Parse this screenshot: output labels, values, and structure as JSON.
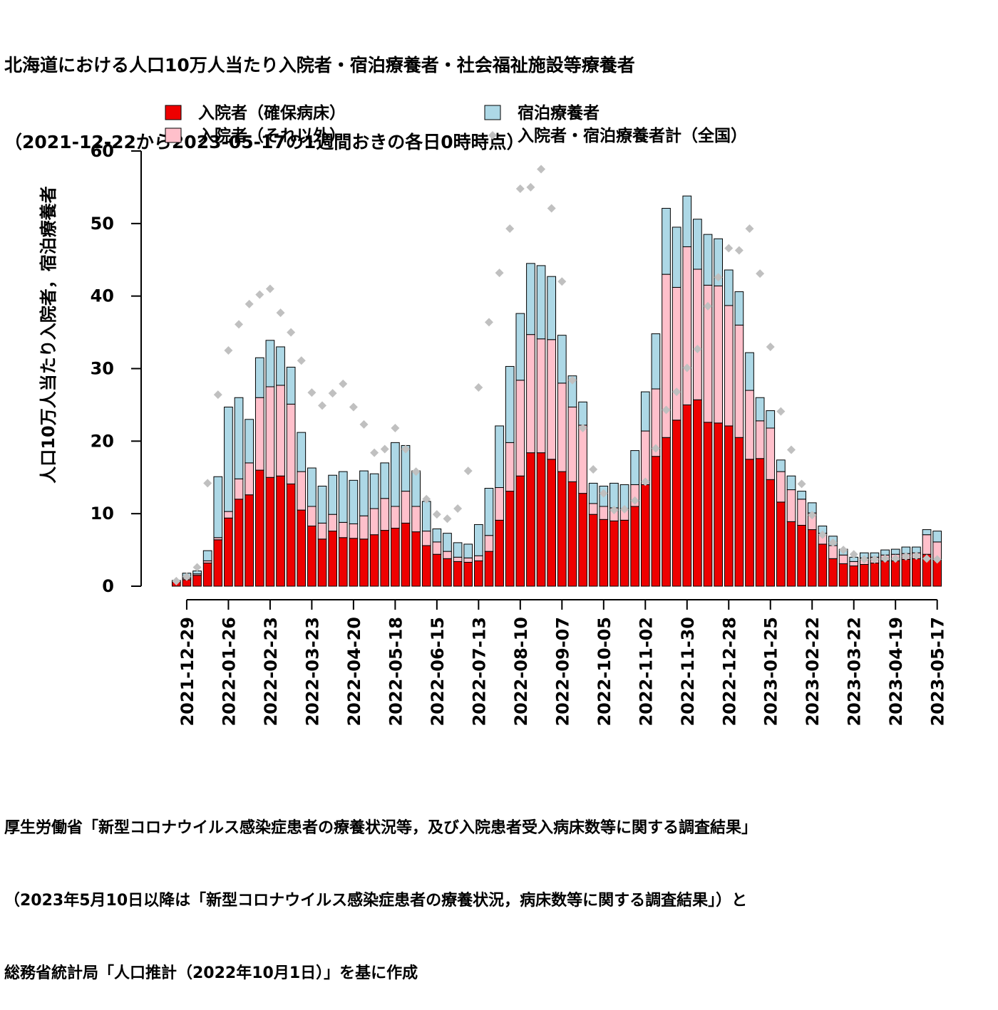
{
  "title_line1": "北海道における人口10万人当たり入院者・宿泊療養者・社会福祉施設等療養者",
  "title_line2": "（2021-12-22から2023-05-17の1週間おきの各日0時時点）",
  "source_lines": [
    "厚生労働省「新型コロナウイルス感染症患者の療養状況等，及び入院患者受入病床数等に関する調査結果」",
    "（2023年5月10日以降は「新型コロナウイルス感染症患者の療養状況，病床数等に関する調査結果」）と",
    "総務省統計局「人口推計（2022年10月1日）」を基に作成"
  ],
  "chart_data": {
    "type": "bar",
    "stacked": true,
    "ylabel": "人口10万人当たり入院者，宿泊療養者",
    "ylim": [
      0,
      60
    ],
    "yticks": [
      0,
      10,
      20,
      30,
      40,
      50,
      60
    ],
    "xtick_labels": [
      "2021-12-29",
      "2022-01-26",
      "2022-02-23",
      "2022-03-23",
      "2022-04-20",
      "2022-05-18",
      "2022-06-15",
      "2022-07-13",
      "2022-08-10",
      "2022-09-07",
      "2022-10-05",
      "2022-11-02",
      "2022-11-30",
      "2022-12-28",
      "2023-01-25",
      "2023-02-22",
      "2023-03-22",
      "2023-04-19",
      "2023-05-17"
    ],
    "legend_placement": "top",
    "colors": {
      "secured": "#ee0000",
      "other": "#ffc0cb",
      "hotel": "#add8e6",
      "national": "#c0c0c0"
    },
    "series": [
      {
        "name": "入院者（確保病床）",
        "key": "secured",
        "values": [
          0.6,
          0.9,
          1.5,
          3.2,
          6.4,
          9.4,
          12.0,
          12.6,
          16.0,
          15.0,
          15.2,
          14.1,
          10.5,
          8.3,
          6.5,
          7.6,
          6.7,
          6.6,
          6.5,
          7.1,
          7.7,
          8.0,
          8.7,
          7.5,
          5.6,
          4.4,
          3.8,
          3.4,
          3.3,
          3.5,
          4.8,
          9.1,
          13.1,
          15.2,
          18.4,
          18.4,
          17.5,
          15.8,
          14.4,
          12.8,
          9.9,
          9.2,
          9.0,
          9.1,
          11.0,
          14.0,
          17.9,
          20.5,
          22.9,
          25.0,
          25.7,
          22.6,
          22.5,
          22.1,
          20.5,
          17.5,
          17.6,
          14.7,
          11.6,
          8.9,
          8.4,
          7.8,
          5.8,
          3.8,
          3.1,
          2.8,
          3.0,
          3.2,
          3.5,
          3.5,
          3.7,
          3.8,
          4.4,
          3.6
        ]
      },
      {
        "name": "入院者（それ以外）",
        "key": "other",
        "values": [
          0.1,
          0.2,
          0.2,
          0.3,
          0.3,
          0.9,
          2.8,
          4.4,
          10.0,
          12.5,
          12.5,
          11.0,
          5.3,
          2.7,
          2.2,
          2.3,
          2.1,
          2.0,
          3.2,
          3.6,
          4.4,
          3.0,
          4.4,
          3.5,
          2.0,
          1.7,
          1.0,
          0.6,
          0.6,
          0.7,
          2.2,
          4.5,
          6.7,
          13.2,
          16.3,
          15.7,
          16.5,
          12.2,
          10.3,
          9.4,
          1.5,
          1.8,
          1.8,
          1.6,
          3.0,
          7.4,
          9.3,
          22.5,
          18.3,
          21.8,
          18.0,
          18.9,
          18.9,
          16.6,
          15.5,
          9.5,
          5.2,
          7.1,
          4.2,
          4.4,
          3.6,
          2.3,
          1.5,
          1.8,
          1.2,
          0.6,
          0.9,
          0.8,
          0.8,
          0.9,
          0.8,
          0.8,
          2.7,
          2.5
        ]
      },
      {
        "name": "宿泊療養者",
        "key": "hotel",
        "values": [
          0.1,
          0.7,
          0.4,
          1.4,
          8.4,
          14.4,
          11.2,
          6.0,
          5.5,
          6.4,
          5.3,
          5.1,
          5.4,
          5.3,
          5.1,
          5.4,
          7.0,
          6.0,
          6.2,
          4.8,
          4.9,
          8.8,
          6.3,
          4.9,
          4.1,
          1.8,
          2.5,
          2.0,
          1.9,
          4.3,
          6.5,
          8.5,
          10.5,
          9.2,
          9.8,
          10.1,
          8.7,
          6.6,
          4.3,
          3.2,
          2.8,
          2.8,
          3.4,
          3.3,
          4.7,
          5.4,
          7.6,
          9.1,
          8.3,
          7.0,
          6.9,
          7.0,
          6.5,
          4.9,
          4.6,
          5.2,
          3.2,
          2.4,
          1.6,
          1.9,
          1.1,
          1.4,
          1.0,
          1.3,
          0.8,
          0.6,
          0.7,
          0.6,
          0.7,
          0.7,
          0.9,
          0.8,
          0.7,
          1.5
        ]
      },
      {
        "name": "入院者・宿泊療養者計（全国）",
        "key": "national",
        "kind": "points",
        "values": [
          0.7,
          1.3,
          2.6,
          14.2,
          26.4,
          32.5,
          36.1,
          38.9,
          40.2,
          41.0,
          37.7,
          35.0,
          31.1,
          26.7,
          24.9,
          26.6,
          27.9,
          24.7,
          22.3,
          18.4,
          18.9,
          21.8,
          18.9,
          15.8,
          12.0,
          9.9,
          9.3,
          10.7,
          15.9,
          27.4,
          36.4,
          43.2,
          49.3,
          54.8,
          55.0,
          57.5,
          52.1,
          42.0,
          28.4,
          21.8,
          16.1,
          12.8,
          10.5,
          10.6,
          11.8,
          14.4,
          19.0,
          24.3,
          26.8,
          30.1,
          32.7,
          38.6,
          42.6,
          46.6,
          46.3,
          49.3,
          43.1,
          33.0,
          24.1,
          18.8,
          14.1,
          9.8,
          7.1,
          6.0,
          5.0,
          4.4,
          3.7,
          3.7,
          3.8,
          3.8,
          4.1,
          4.2,
          3.8,
          3.7
        ]
      }
    ]
  }
}
